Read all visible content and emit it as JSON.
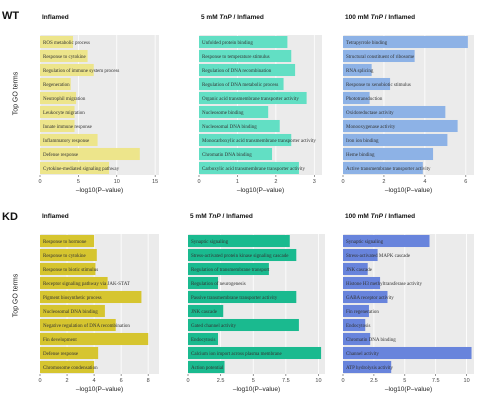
{
  "groups": [
    {
      "label": "WT"
    },
    {
      "label": "KD"
    }
  ],
  "y_axis_label": "Top GO terms",
  "x_axis_label": "–log10(P–value)",
  "chart_data": [
    {
      "type": "bar",
      "group": "WT",
      "title": "Inflamed",
      "color": "#ede58b",
      "xlim": [
        0,
        15.5
      ],
      "ticks": [
        0,
        5,
        10,
        15
      ],
      "categories": [
        "ROS metabolic process",
        "Response to cytokine",
        "Regulation of immune system process",
        "Regeneration",
        "Neutrophil migration",
        "Leukocyte migration",
        "Innate immune response",
        "Inflammatory response",
        "Defense response",
        "Cytokine-mediated signaling pathway"
      ],
      "values": [
        4.3,
        6.2,
        7.0,
        4.0,
        4.7,
        4.5,
        4.5,
        7.5,
        13.0,
        9.0
      ]
    },
    {
      "type": "bar",
      "group": "WT",
      "title": "5 mM TnP / Inflamed",
      "color": "#62dfc4",
      "xlim": [
        0,
        3.2
      ],
      "ticks": [
        0,
        1,
        2,
        3
      ],
      "categories": [
        "Unfolded protein binding",
        "Response to temperature stimulus",
        "Regulation of DNA recombination",
        "Regulation of DNA metabolic process",
        "Organic acid transmembrane transporter activity",
        "Nucleosome binding",
        "Nucleosomal DNA binding",
        "Monocarboxylic acid transmembrane transporter activity",
        "Chromatin DNA binding",
        "Carboxylic acid transmembrane transporter activity"
      ],
      "values": [
        2.3,
        2.4,
        2.5,
        2.2,
        2.8,
        1.8,
        2.1,
        2.4,
        1.9,
        2.6
      ]
    },
    {
      "type": "bar",
      "group": "WT",
      "title": "100 mM TnP / Inflamed",
      "color": "#8db2e6",
      "xlim": [
        0,
        6.4
      ],
      "ticks": [
        0,
        2,
        4,
        6
      ],
      "categories": [
        "Tetrapyrrole binding",
        "Structural constituent of ribosome",
        "RNA splicing",
        "Response to xenobiotic stimulus",
        "Phototransduction",
        "Oxidoreductase activity",
        "Monooxygenase activity",
        "Iron ion binding",
        "Heme binding",
        "Active transmembrane transporter activity"
      ],
      "values": [
        6.1,
        3.5,
        1.4,
        2.3,
        1.3,
        5.0,
        5.6,
        5.1,
        4.4,
        3.9
      ]
    },
    {
      "type": "bar",
      "group": "KD",
      "title": "Inflamed",
      "color": "#d6c52f",
      "xlim": [
        0,
        8.8
      ],
      "ticks": [
        0,
        2,
        4,
        6,
        8
      ],
      "categories": [
        "Response to hormone",
        "Response to cytokine",
        "Response to biotic stimulus",
        "Receptor signaling pathway via JAK-STAT",
        "Pigment biosynthetic process",
        "Nucleosomal DNA binding",
        "Negative regulation of DNA recombination",
        "Fin development",
        "Defense response",
        "Chromosome condensation"
      ],
      "values": [
        4.0,
        4.2,
        4.1,
        5.0,
        7.5,
        4.8,
        5.6,
        8.0,
        4.3,
        4.0
      ]
    },
    {
      "type": "bar",
      "group": "KD",
      "title": "5 mM TnP / Inflamed",
      "color": "#1aba8f",
      "xlim": [
        0,
        10.5
      ],
      "ticks": [
        0,
        2.5,
        5,
        7.5,
        10
      ],
      "categories": [
        "Synaptic signaling",
        "Stress-activated protein kinase signaling cascade",
        "Regulation of transmembrane transport",
        "Regulation of neurogenesis",
        "Passive transmembrane transporter activity",
        "JNK cascade",
        "Gated channel activity",
        "Endocytosis",
        "Calcium ion import across plasma membrane",
        "Action potential"
      ],
      "values": [
        7.8,
        8.3,
        6.2,
        2.3,
        8.3,
        2.7,
        8.5,
        2.3,
        10.2,
        2.8
      ]
    },
    {
      "type": "bar",
      "group": "KD",
      "title": "100 mM TnP / Inflamed",
      "color": "#6884dc",
      "xlim": [
        0,
        10.6
      ],
      "ticks": [
        0,
        2.5,
        5,
        7.5,
        10
      ],
      "categories": [
        "Synaptic signaling",
        "Stress-activated MAPK cascade",
        "JNK cascade",
        "Histone H3 methyltransferase activity",
        "GABA receptor activity",
        "Fin regeneration",
        "Endocytosis",
        "Chromatin DNA binding",
        "Channel activity",
        "ATP hydrolysis activity"
      ],
      "values": [
        7.0,
        2.8,
        2.0,
        3.0,
        3.6,
        2.1,
        1.8,
        2.2,
        10.4,
        3.9
      ]
    }
  ]
}
